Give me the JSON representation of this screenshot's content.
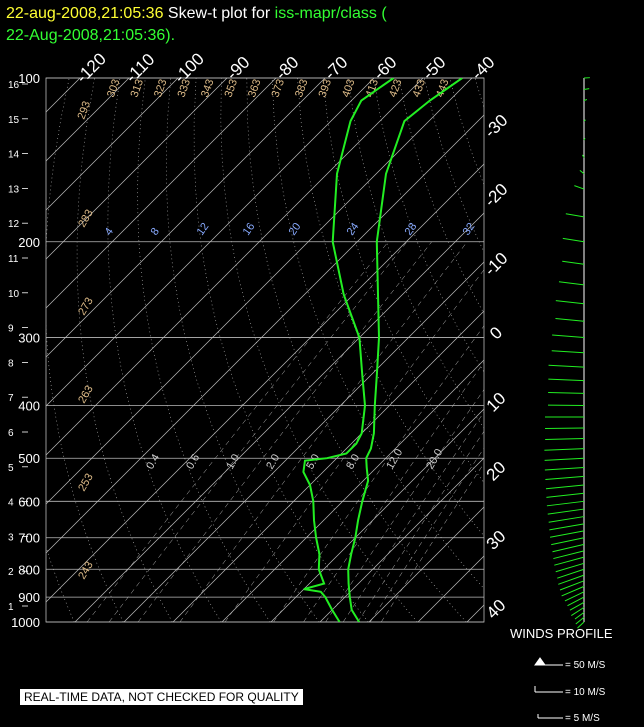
{
  "header": {
    "date_left": "22-aug-2008,21:05:36",
    "title_mid": "Skew-t plot for",
    "station": "iss-mapr/class (",
    "date_right": "22-Aug-2008,21:05:36)."
  },
  "notice": "REAL-TIME DATA, NOT CHECKED FOR QUALITY",
  "winds": {
    "title": "WINDS PROFILE",
    "legend": [
      "= 50 M/S",
      "= 10 M/S",
      "= 5 M/S"
    ]
  },
  "colors": {
    "temp_line": "#22ee22",
    "grid": "#bbbbbb",
    "isotherm_label": "#ffffff",
    "mixing_label": "#88aaff",
    "theta_label": "#ddbb88"
  },
  "chart_data": {
    "type": "line",
    "title": "Skew-t plot for iss-mapr/class",
    "y_pressure_ticks": [
      100,
      200,
      300,
      400,
      500,
      600,
      700,
      800,
      900,
      1000
    ],
    "y_height_ticks": [
      1,
      2,
      3,
      4,
      5,
      6,
      7,
      8,
      9,
      10,
      11,
      12,
      13,
      14,
      15,
      16
    ],
    "top_temp_ticks": [
      "-120",
      "-110",
      "-100",
      "-90",
      "-80",
      "-70",
      "-60",
      "-50",
      "-40"
    ],
    "right_temp_ticks": [
      "-30",
      "-20",
      "-10",
      "0",
      "10",
      "20",
      "30",
      "40"
    ],
    "theta_labels": [
      "293",
      "303",
      "313",
      "323",
      "333",
      "343",
      "353",
      "363",
      "373",
      "383",
      "393",
      "403",
      "413",
      "423",
      "433",
      "443",
      "283",
      "273",
      "263",
      "253",
      "243"
    ],
    "mixing_ratio_labels_upper": [
      "4",
      "8",
      "12",
      "16",
      "20",
      "24",
      "28",
      "32"
    ],
    "mixing_ratio_labels_lower": [
      "0.4",
      "0.6",
      "1.0",
      "2.0",
      "5.0",
      "8.0",
      "12.0",
      "20.0"
    ],
    "series": [
      {
        "name": "temperature",
        "points": [
          [
            1000,
            28
          ],
          [
            950,
            24
          ],
          [
            900,
            21
          ],
          [
            850,
            18
          ],
          [
            800,
            15
          ],
          [
            750,
            12.5
          ],
          [
            700,
            10
          ],
          [
            650,
            7
          ],
          [
            600,
            4
          ],
          [
            550,
            1
          ],
          [
            520,
            -2
          ],
          [
            500,
            -4
          ],
          [
            480,
            -5
          ],
          [
            450,
            -7.5
          ],
          [
            400,
            -13
          ],
          [
            350,
            -19
          ],
          [
            300,
            -26
          ],
          [
            250,
            -35
          ],
          [
            200,
            -46
          ],
          [
            150,
            -58
          ],
          [
            120,
            -65
          ],
          [
            110,
            -64
          ],
          [
            100,
            -62
          ]
        ]
      },
      {
        "name": "dewpoint",
        "points": [
          [
            1000,
            24
          ],
          [
            950,
            20
          ],
          [
            900,
            16
          ],
          [
            880,
            14
          ],
          [
            870,
            10
          ],
          [
            850,
            13
          ],
          [
            800,
            9
          ],
          [
            750,
            6
          ],
          [
            700,
            2
          ],
          [
            650,
            -2
          ],
          [
            600,
            -6
          ],
          [
            560,
            -10
          ],
          [
            530,
            -14
          ],
          [
            505,
            -16
          ],
          [
            500,
            -12
          ],
          [
            490,
            -9
          ],
          [
            470,
            -9
          ],
          [
            450,
            -10
          ],
          [
            400,
            -15
          ],
          [
            350,
            -22
          ],
          [
            300,
            -30
          ],
          [
            250,
            -42
          ],
          [
            200,
            -55
          ],
          [
            150,
            -68
          ],
          [
            120,
            -76
          ],
          [
            110,
            -78
          ],
          [
            100,
            -76
          ]
        ]
      }
    ],
    "wind_profile": [
      [
        1000,
        18,
        14
      ],
      [
        980,
        20,
        16
      ],
      [
        960,
        22,
        16
      ],
      [
        940,
        25,
        20
      ],
      [
        920,
        28,
        20
      ],
      [
        900,
        30,
        22
      ],
      [
        880,
        32,
        24
      ],
      [
        860,
        35,
        26
      ],
      [
        840,
        38,
        26
      ],
      [
        820,
        40,
        28
      ],
      [
        800,
        42,
        28
      ],
      [
        780,
        45,
        30
      ],
      [
        760,
        48,
        30
      ],
      [
        740,
        50,
        32
      ],
      [
        720,
        52,
        32
      ],
      [
        700,
        55,
        34
      ],
      [
        680,
        58,
        34
      ],
      [
        660,
        60,
        34
      ],
      [
        640,
        62,
        36
      ],
      [
        620,
        65,
        36
      ],
      [
        600,
        68,
        36
      ],
      [
        580,
        70,
        36
      ],
      [
        560,
        72,
        36
      ],
      [
        540,
        75,
        34
      ],
      [
        520,
        78,
        32
      ],
      [
        500,
        80,
        30
      ],
      [
        480,
        82,
        28
      ],
      [
        460,
        85,
        26
      ],
      [
        440,
        88,
        26
      ],
      [
        420,
        90,
        26
      ],
      [
        400,
        92,
        24
      ],
      [
        380,
        95,
        24
      ],
      [
        360,
        98,
        24
      ],
      [
        340,
        100,
        24
      ],
      [
        320,
        102,
        22
      ],
      [
        300,
        105,
        22
      ],
      [
        280,
        108,
        20
      ],
      [
        260,
        110,
        20
      ],
      [
        240,
        112,
        18
      ],
      [
        220,
        115,
        16
      ],
      [
        200,
        118,
        16
      ],
      [
        180,
        120,
        14
      ],
      [
        160,
        140,
        10
      ],
      [
        150,
        160,
        8
      ],
      [
        140,
        170,
        6
      ],
      [
        130,
        190,
        4
      ],
      [
        120,
        200,
        3
      ],
      [
        110,
        220,
        3
      ],
      [
        105,
        240,
        4
      ],
      [
        100,
        260,
        4
      ]
    ]
  }
}
